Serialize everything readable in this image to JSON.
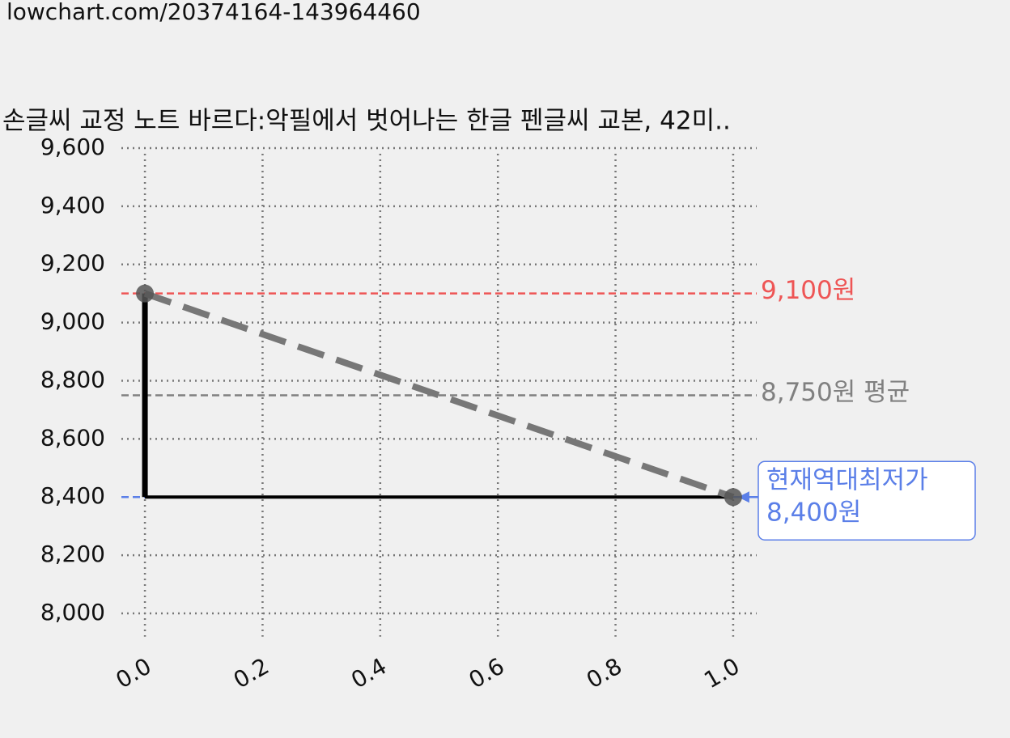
{
  "chart_data": {
    "type": "line",
    "url": "lowchart.com/20374164-143964460",
    "title": "손글씨 교정 노트 바르다:악필에서 벗어나는 한글 펜글씨 교본, 42미..",
    "x": [
      0,
      1
    ],
    "series": [
      {
        "color": "#000000",
        "style": "step",
        "values": [
          9100,
          8400
        ]
      },
      {
        "color": "#777777",
        "style": "dashed",
        "values": [
          9100,
          8400
        ]
      }
    ],
    "reference_lines": [
      {
        "value": 9100,
        "color": "#ee5555",
        "label": "9,100원"
      },
      {
        "value": 8750,
        "color": "#808080",
        "label": "8,750원 평균"
      },
      {
        "value": 8400,
        "color": "#5b7fe8",
        "label": [
          "현재역대최저가",
          "8,400원"
        ]
      }
    ],
    "xlim": [
      -0.04,
      1.04
    ],
    "ylim": [
      7920,
      9620
    ],
    "xticks": [
      {
        "value": 0,
        "label": "0.0"
      },
      0.2,
      0.4,
      0.6,
      0.8,
      {
        "value": 1,
        "label": "1.0"
      }
    ],
    "yticks": [
      {
        "value": 8000,
        "label": "8,000"
      },
      {
        "value": 8200,
        "label": "8,200"
      },
      {
        "value": 8400,
        "label": "8,400"
      },
      {
        "value": 8600,
        "label": "8,600"
      },
      {
        "value": 8800,
        "label": "8,800"
      },
      {
        "value": 9000,
        "label": "9,000"
      },
      {
        "value": 9200,
        "label": "9,200"
      },
      {
        "value": 9400,
        "label": "9,400"
      },
      {
        "value": 9600,
        "label": "9,600"
      }
    ],
    "grid": true
  }
}
